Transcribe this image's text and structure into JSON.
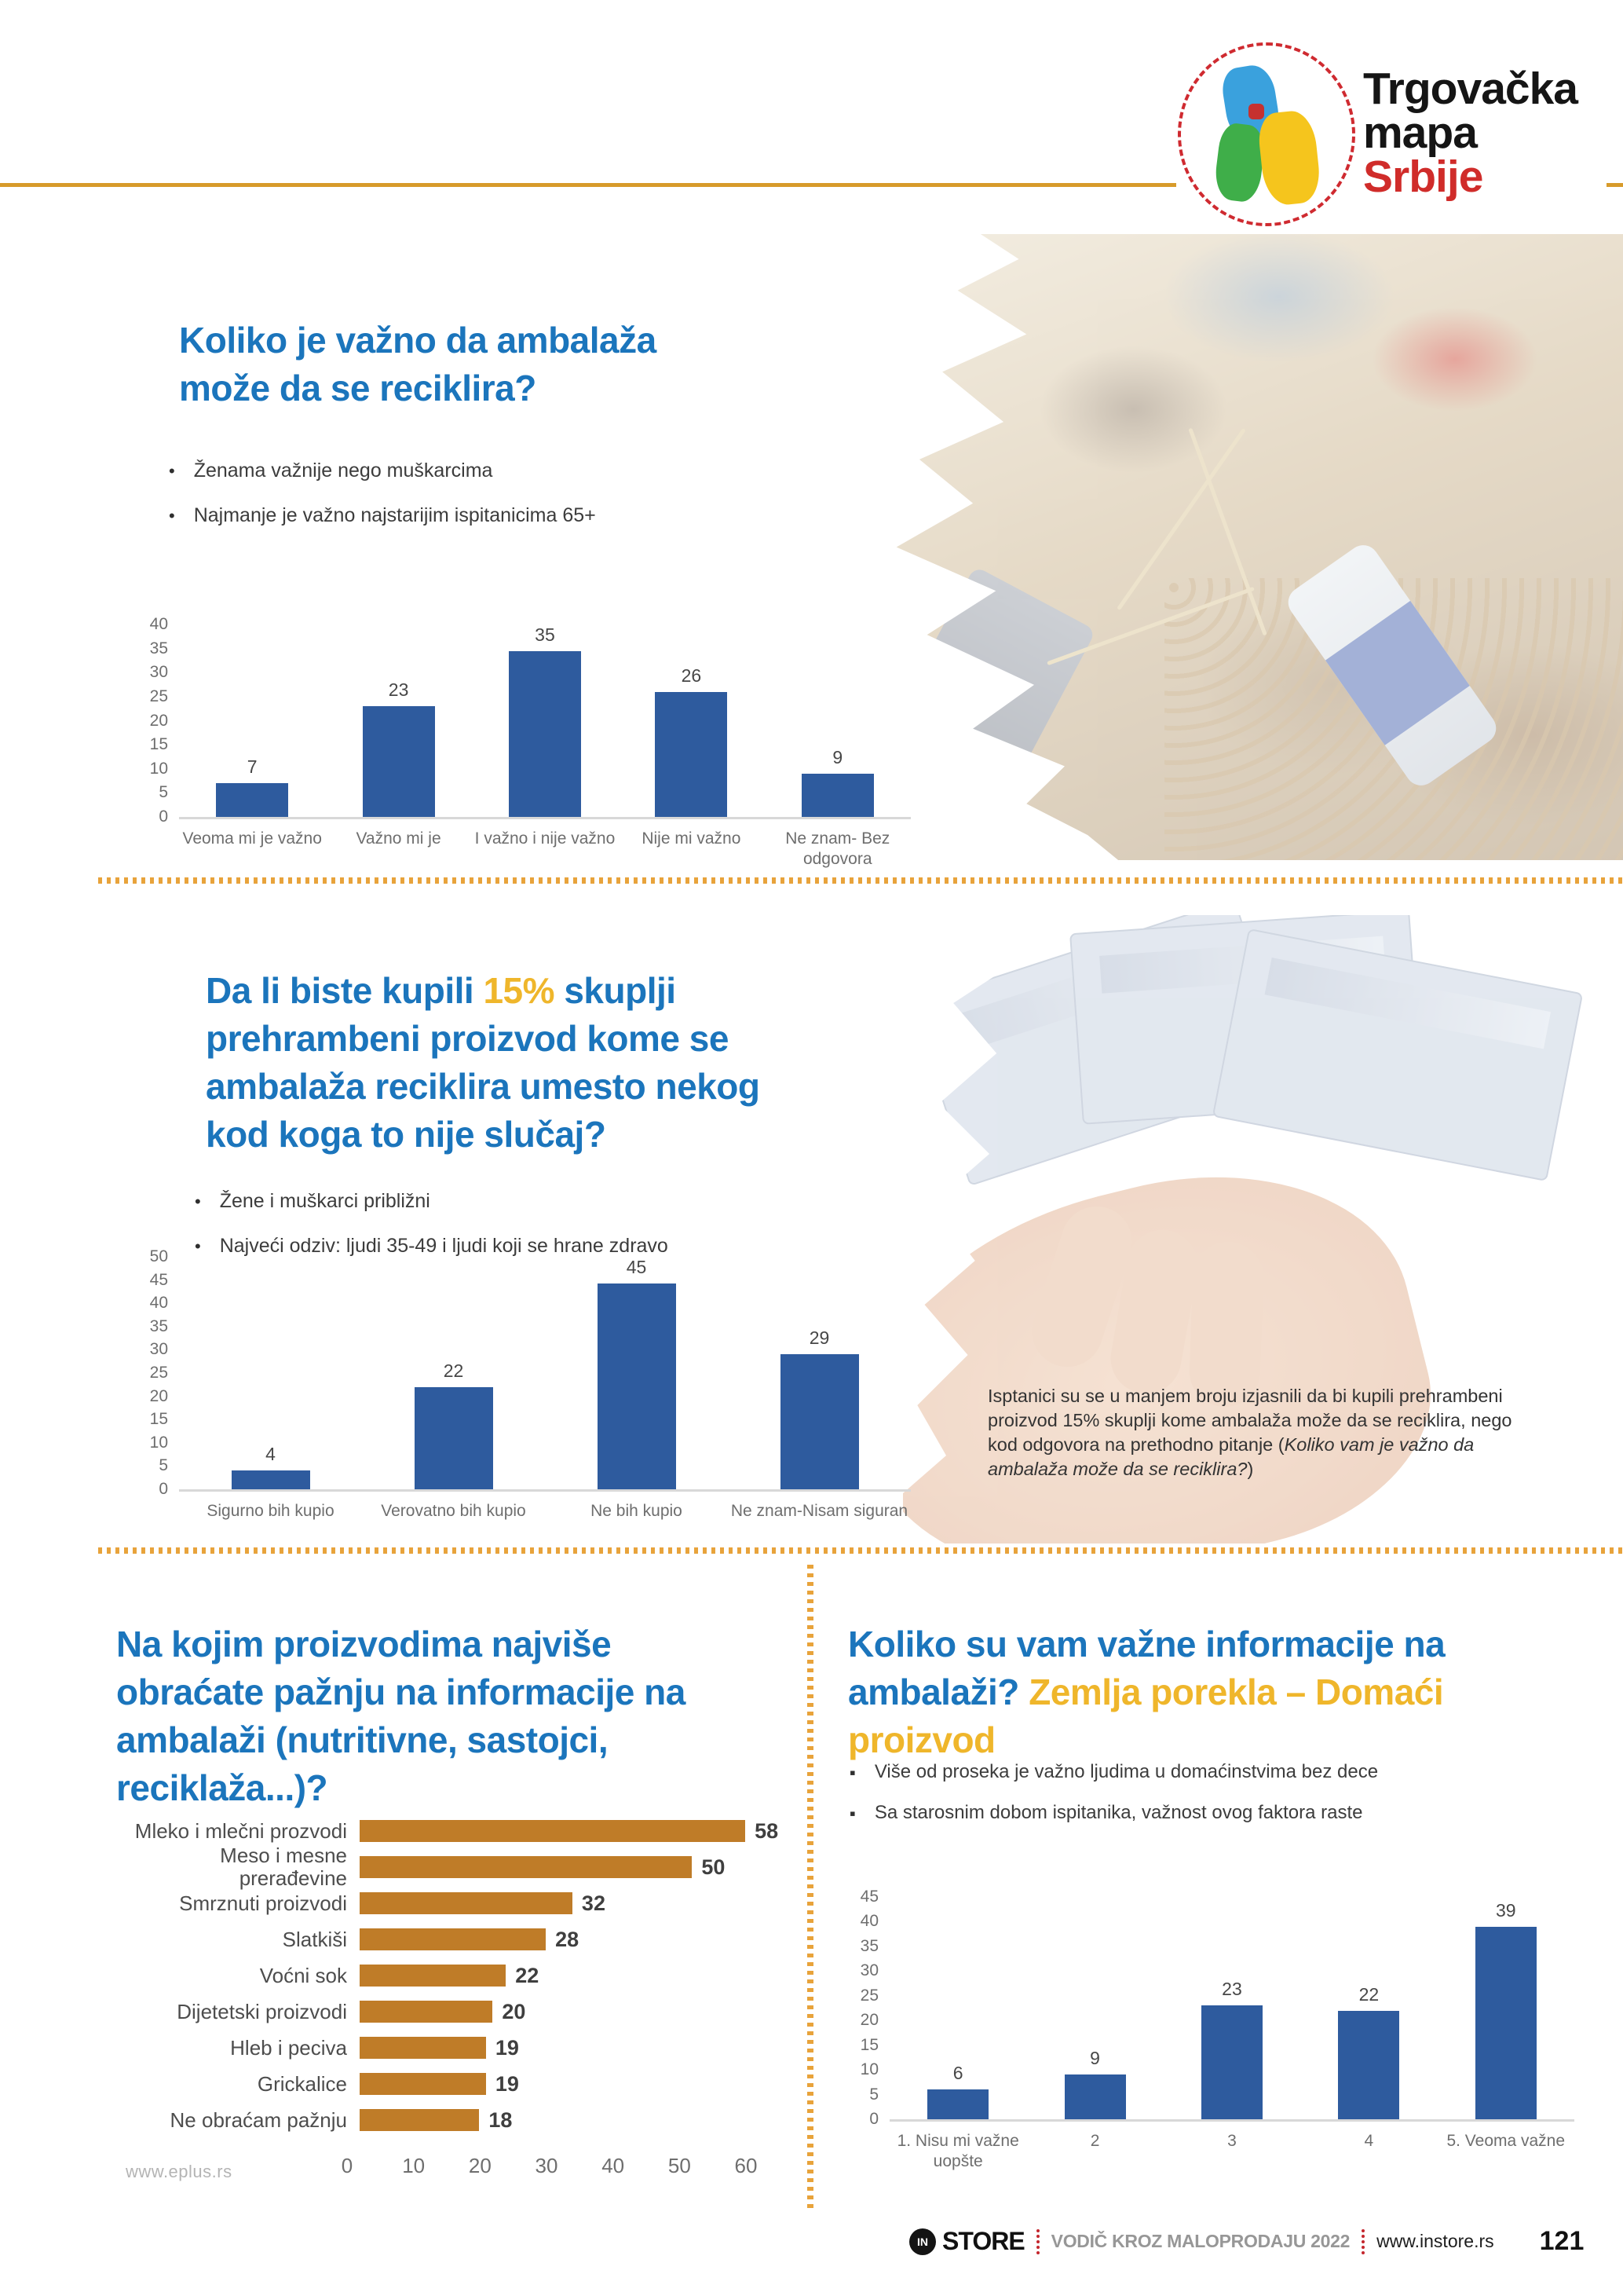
{
  "logo": {
    "line1": "Trgovačka",
    "line2_black": "mapa ",
    "line2_red": "Srbije"
  },
  "colors": {
    "title_blue": "#1b75bc",
    "highlight_gold": "#efb62b",
    "bar_blue": "#2e5b9e",
    "bar_orange": "#bf7c28",
    "separator_orange": "#e8a33b",
    "header_gold": "#d79b2a",
    "footer_red": "#c4262d"
  },
  "sections": {
    "s1": {
      "title": "Koliko je važno da ambalaža može da se reciklira?",
      "bullets": [
        "Ženama važnije nego muškarcima",
        "Najmanje je važno najstarijim ispitanicima 65+"
      ]
    },
    "s2": {
      "title_pre": "Da li biste kupili ",
      "title_highlight": "15%",
      "title_post": " skuplji prehrambeni proizvod kome se ambalaža reciklira umesto nekog kod koga to nije slučaj?",
      "bullets": [
        "Žene i muškarci približni",
        "Najveći odziv: ljudi 35-49 i ljudi koji se hrane zdravo"
      ],
      "caption_normal": "Isptanici su se u manjem broju izjasnili da bi kupili prehrambeni proizvod 15% skuplji kome ambalaža može da se reciklira, nego kod odgovora na prethodno pitanje (",
      "caption_italic": "Koliko vam je važno da ambalaža može da se reciklira?",
      "caption_end": ")"
    },
    "s3": {
      "title": "Na kojim proizvodima najviše obraćate pažnju na informacije na ambalaži (nutritivne, sastojci, reciklaža...)?",
      "watermark": "www.eplus.rs"
    },
    "s4": {
      "title_blue": "Koliko su vam važne informacije na ambalaži? ",
      "title_yellow": "Zemlja porekla – Domaći proizvod",
      "bullets": [
        "Više od proseka je važno ljudima u domaćinstvima bez dece",
        "Sa starosnim dobom ispitanika, važnost ovog faktora raste"
      ]
    }
  },
  "chart_data": [
    {
      "type": "bar",
      "title": "Koliko je važno da ambalaža može da se reciklira?",
      "categories": [
        "Veoma mi je važno",
        "Važno mi je",
        "I važno i nije važno",
        "Nije mi važno",
        "Ne znam- Bez odgovora"
      ],
      "values": [
        7,
        23,
        35,
        26,
        9
      ],
      "xlabel": "",
      "ylabel": "",
      "ylim": [
        0,
        40
      ],
      "ytick_step": 5,
      "bar_color": "#2e5b9e",
      "grid": false,
      "legend": "none"
    },
    {
      "type": "bar",
      "title": "Da li biste kupili 15% skuplji prehrambeni proizvod kome se ambalaža reciklira umesto nekog kod koga to nije slučaj?",
      "categories": [
        "Sigurno bih kupio",
        "Verovatno bih kupio",
        "Ne bih kupio",
        "Ne znam-Nisam siguran"
      ],
      "values": [
        4,
        22,
        45,
        29
      ],
      "xlabel": "",
      "ylabel": "",
      "ylim": [
        0,
        50
      ],
      "ytick_step": 5,
      "bar_color": "#2e5b9e",
      "grid": false,
      "legend": "none"
    },
    {
      "type": "bar-horizontal",
      "title": "Na kojim proizvodima najviše obraćate pažnju na informacije na ambalaži (nutritivne, sastojci, reciklaža...)?",
      "categories": [
        "Mleko i mlečni prozvodi",
        "Meso i mesne prerađevine",
        "Smrznuti proizvodi",
        "Slatkiši",
        "Voćni sok",
        "Dijetetski proizvodi",
        "Hleb i peciva",
        "Grickalice",
        "Ne obraćam pažnju"
      ],
      "values": [
        58,
        50,
        32,
        28,
        22,
        20,
        19,
        19,
        18
      ],
      "xlabel": "",
      "ylabel": "",
      "xlim": [
        0,
        60
      ],
      "xtick_step": 10,
      "bar_color": "#bf7c28",
      "grid": false,
      "legend": "none"
    },
    {
      "type": "bar",
      "title": "Koliko su vam važne informacije na ambalaži? Zemlja porekla – Domaći proizvod",
      "categories": [
        "1. Nisu mi važne uopšte",
        "2",
        "3",
        "4",
        "5. Veoma važne"
      ],
      "values": [
        6,
        9,
        23,
        22,
        39
      ],
      "xlabel": "",
      "ylabel": "",
      "ylim": [
        0,
        45
      ],
      "ytick_step": 5,
      "bar_color": "#2e5b9e",
      "grid": false,
      "legend": "none"
    }
  ],
  "footer": {
    "brand_in": "IN",
    "brand": "STORE",
    "middle": "VODIČ KROZ MALOPRODAJU 2022",
    "site": "www.instore.rs",
    "page": "121"
  }
}
